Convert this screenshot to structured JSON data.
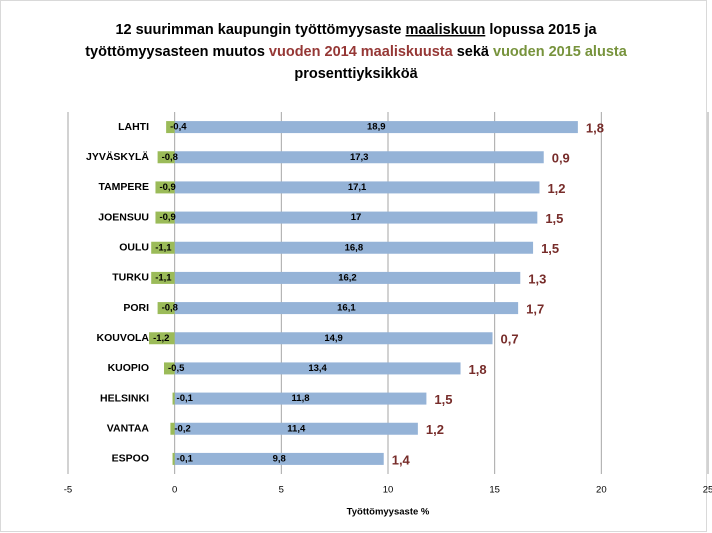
{
  "chart_data": {
    "type": "bar",
    "orientation": "horizontal",
    "title": [
      [
        {
          "text": "12 suurimman kaupungin työttömyysaste ",
          "color": "#000000"
        },
        {
          "text": "maaliskuun",
          "color": "#000000",
          "underline": true
        },
        {
          "text": " lopussa 2015 ja",
          "color": "#000000"
        }
      ],
      [
        {
          "text": "työttömyysasteen muutos ",
          "color": "#000000"
        },
        {
          "text": "vuoden 2014 maaliskuusta",
          "color": "#953735"
        },
        {
          "text": " sekä ",
          "color": "#000000"
        },
        {
          "text": "vuoden 2015 alusta",
          "color": "#77933c"
        }
      ],
      [
        {
          "text": "prosenttiyksikköä",
          "color": "#000000"
        }
      ]
    ],
    "x_label": "Työttömyysaste %",
    "categories": [
      "LAHTI",
      "JYVÄSKYLÄ",
      "TAMPERE",
      "JOENSUU",
      "OULU",
      "TURKU",
      "PORI",
      "KOUVOLA",
      "KUOPIO",
      "HELSINKI",
      "VANTAA",
      "ESPOO"
    ],
    "series": [
      {
        "color": "#95b3d7",
        "style": "bar",
        "values": [
          18.9,
          17.3,
          17.1,
          17,
          16.8,
          16.2,
          16.1,
          14.9,
          13.4,
          11.8,
          11.4,
          9.8
        ],
        "value_labels": [
          "18,9",
          "17,3",
          "17,1",
          "17",
          "16,8",
          "16,2",
          "16,1",
          "14,9",
          "13,4",
          "11,8",
          "11,4",
          "9,8"
        ]
      },
      {
        "color": "#9bbb59",
        "style": "bar",
        "values": [
          -0.4,
          -0.8,
          -0.9,
          -0.9,
          -1.1,
          -1.1,
          -0.8,
          -1.2,
          -0.5,
          -0.1,
          -0.2,
          -0.1
        ],
        "value_labels": [
          "-0,4",
          "-0,8",
          "-0,9",
          "-0,9",
          "-1,1",
          "-1,1",
          "-0,8",
          "-1,2",
          "-0,5",
          "-0,1",
          "-0,2",
          "-0,1"
        ]
      },
      {
        "color": "#772c2a",
        "style": "label",
        "values": [
          1.8,
          0.9,
          1.2,
          1.5,
          1.5,
          1.3,
          1.7,
          0.7,
          1.8,
          1.5,
          1.2,
          1.4
        ],
        "value_labels": [
          "1,8",
          "0,9",
          "1,2",
          "1,5",
          "1,5",
          "1,3",
          "1,7",
          "0,7",
          "1,8",
          "1,5",
          "1,2",
          "1,4"
        ]
      }
    ],
    "xlim": [
      -5,
      25
    ],
    "xticks": [
      -5,
      0,
      5,
      10,
      15,
      20,
      25
    ],
    "grid": true
  }
}
